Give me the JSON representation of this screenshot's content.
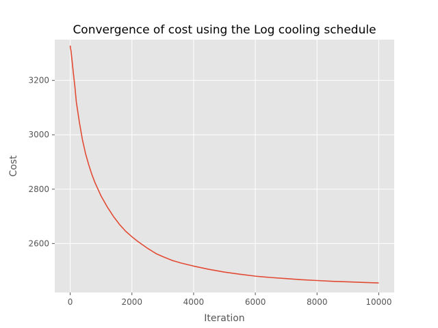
{
  "chart_data": {
    "type": "line",
    "title": "Convergence of cost using the Log cooling schedule",
    "xlabel": "Iteration",
    "ylabel": "Cost",
    "xlim": [
      -500,
      10500
    ],
    "ylim": [
      2420,
      3350
    ],
    "xticks": [
      0,
      2000,
      4000,
      6000,
      8000,
      10000
    ],
    "xtick_labels": [
      "0",
      "2000",
      "4000",
      "6000",
      "8000",
      "10000"
    ],
    "yticks": [
      2600,
      2800,
      3000,
      3200
    ],
    "ytick_labels": [
      "2600",
      "2800",
      "3000",
      "3200"
    ],
    "grid": true,
    "style": "ggplot",
    "colors": {
      "background": "#e5e5e5",
      "grid": "#ffffff",
      "line": "#e24a33",
      "tick": "#555555"
    },
    "series": [
      {
        "x": [
          0,
          10,
          25,
          50,
          100,
          150,
          200,
          300,
          400,
          500,
          600,
          700,
          800,
          900,
          1000,
          1200,
          1400,
          1600,
          1800,
          2000,
          2200,
          2500,
          2800,
          3000,
          3300,
          3600,
          4000,
          4500,
          5000,
          5500,
          6000,
          6500,
          7000,
          7500,
          8000,
          8500,
          9000,
          9500,
          10000
        ],
        "y": [
          3328,
          3318,
          3310,
          3285,
          3230,
          3180,
          3120,
          3045,
          2980,
          2930,
          2890,
          2855,
          2825,
          2800,
          2775,
          2735,
          2700,
          2670,
          2645,
          2625,
          2607,
          2583,
          2562,
          2552,
          2538,
          2528,
          2517,
          2505,
          2495,
          2487,
          2480,
          2475,
          2471,
          2467,
          2464,
          2461,
          2459,
          2457,
          2455
        ]
      }
    ]
  }
}
